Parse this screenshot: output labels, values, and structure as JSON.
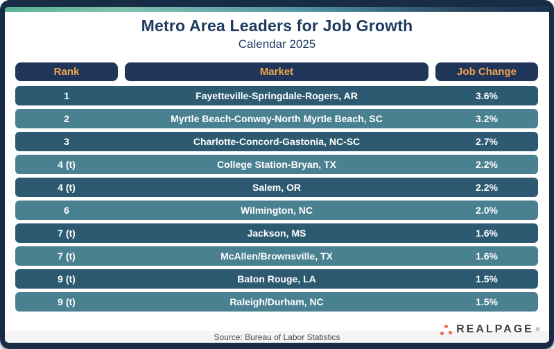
{
  "header": {
    "title": "Metro Area Leaders for Job Growth",
    "subtitle": "Calendar 2025"
  },
  "table": {
    "columns": [
      "Rank",
      "Market",
      "Job Change"
    ]
  },
  "chart_data": {
    "type": "table",
    "title": "Metro Area Leaders for Job Growth",
    "subtitle": "Calendar 2025",
    "columns": [
      "Rank",
      "Market",
      "Job Change"
    ],
    "rows": [
      {
        "rank": "1",
        "market": "Fayetteville-Springdale-Rogers, AR",
        "job_change": "3.6%"
      },
      {
        "rank": "2",
        "market": "Myrtle Beach-Conway-North Myrtle Beach, SC",
        "job_change": "3.2%"
      },
      {
        "rank": "3",
        "market": "Charlotte-Concord-Gastonia, NC-SC",
        "job_change": "2.7%"
      },
      {
        "rank": "4 (t)",
        "market": "College Station-Bryan, TX",
        "job_change": "2.2%"
      },
      {
        "rank": "4 (t)",
        "market": "Salem, OR",
        "job_change": "2.2%"
      },
      {
        "rank": "6",
        "market": "Wilmington, NC",
        "job_change": "2.0%"
      },
      {
        "rank": "7 (t)",
        "market": "Jackson, MS",
        "job_change": "1.6%"
      },
      {
        "rank": "7 (t)",
        "market": "McAllen/Brownsville, TX",
        "job_change": "1.6%"
      },
      {
        "rank": "9 (t)",
        "market": "Baton Rouge, LA",
        "job_change": "1.5%"
      },
      {
        "rank": "9 (t)",
        "market": "Raleigh/Durham, NC",
        "job_change": "1.5%"
      }
    ],
    "job_change_values_pct": [
      3.6,
      3.2,
      2.7,
      2.2,
      2.2,
      2.0,
      1.6,
      1.6,
      1.5,
      1.5
    ]
  },
  "footer": {
    "source": "Source: Bureau of Labor Statistics",
    "brand": "REALPAGE",
    "brand_trademark": "®"
  },
  "colors": {
    "border_navy": "#182c46",
    "header_pill_navy": "#20355a",
    "header_text_orange": "#f0a550",
    "title_navy": "#1d3a5f",
    "row_dark_teal": "#2e5a71",
    "row_light_teal": "#4a8191",
    "accent_strip_green": "#57b291",
    "accent_strip_teal": "#4f93a4",
    "logo_dot_coral": "#e96e4e",
    "logo_text_gray": "#3b4045"
  }
}
